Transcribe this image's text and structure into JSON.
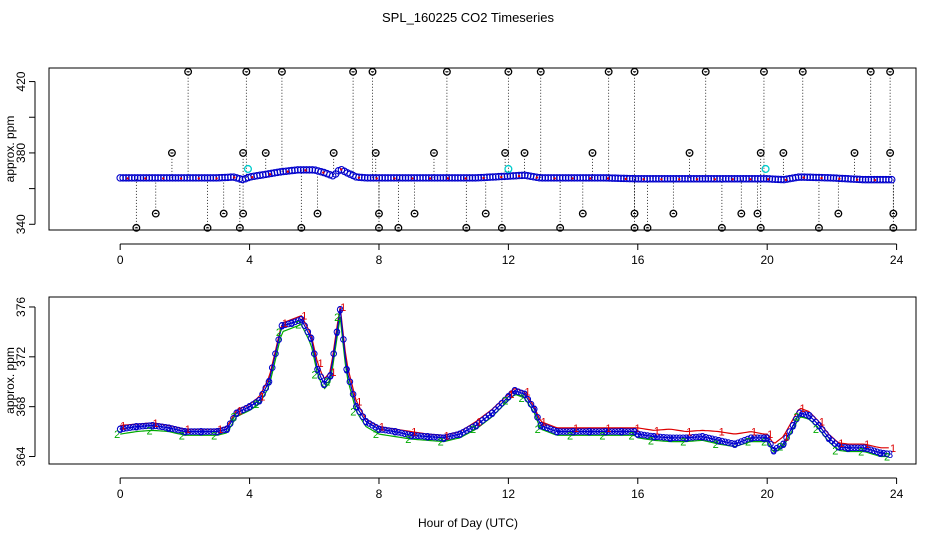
{
  "title": "SPL_160225  CO2 Timeseries",
  "xlabel": "Hour of Day (UTC)",
  "colors": {
    "circle": "#0000cc",
    "flag_black": "#000000",
    "flag_cyan": "#00cccc",
    "series1": "#dd0000",
    "series2": "#00aa00",
    "series3": "#0000cc"
  },
  "chart_data": [
    {
      "type": "scatter",
      "name": "top-panel",
      "ylabel": "approx. ppm",
      "xlim": [
        -2.2,
        24.6
      ],
      "ylim": [
        336.8,
        427.6
      ],
      "x_ticks": [
        "0",
        "4",
        "8",
        "12",
        "16",
        "20",
        "24"
      ],
      "y_ticks": [
        "340",
        "360",
        "380",
        "400",
        "420"
      ],
      "y_tick_labeled": [
        true,
        false,
        true,
        false,
        true
      ],
      "baseline_series": {
        "x": [
          0,
          1,
          2,
          3,
          3.5,
          3.8,
          4,
          4.5,
          5,
          5.5,
          6,
          6.3,
          6.6,
          6.8,
          7,
          7.3,
          7.6,
          8,
          9,
          10,
          11,
          12,
          12.5,
          13,
          14,
          15,
          16,
          17,
          18,
          19,
          20,
          20.5,
          21,
          22,
          23,
          23.8
        ],
        "y": [
          366,
          366,
          366,
          366,
          366.5,
          365,
          366.5,
          368,
          369.5,
          370.5,
          370.5,
          369,
          367,
          371,
          369,
          366.5,
          366,
          366,
          366,
          366,
          366,
          367,
          367.5,
          366,
          366,
          366,
          365.5,
          365.5,
          365.5,
          365.5,
          365.5,
          365,
          366.5,
          366,
          365,
          365
        ]
      },
      "flags_high": [
        2.1,
        3.9,
        5.0,
        7.2,
        7.8,
        10.1,
        12.0,
        13.0,
        15.1,
        15.9,
        18.1,
        19.9,
        21.1,
        23.2,
        23.8
      ],
      "flags_mid_high": [
        1.6,
        3.8,
        4.5,
        6.6,
        7.9,
        9.7,
        11.9,
        12.5,
        14.6,
        17.6,
        19.8,
        20.5,
        22.7,
        23.8
      ],
      "flags_mid_low": [
        1.1,
        3.2,
        3.8,
        6.1,
        8.0,
        9.1,
        11.3,
        14.3,
        15.9,
        17.1,
        19.2,
        19.7,
        22.2,
        23.9
      ],
      "flags_low": [
        0.5,
        2.7,
        3.7,
        5.6,
        8.0,
        8.6,
        10.7,
        11.8,
        13.6,
        15.9,
        16.3,
        18.6,
        19.8,
        21.6,
        23.9
      ],
      "cyan_points": [
        {
          "x": 3.95,
          "y": 371
        },
        {
          "x": 12.0,
          "y": 371
        },
        {
          "x": 19.95,
          "y": 371
        }
      ]
    },
    {
      "type": "line",
      "name": "bottom-panel",
      "ylabel": "approx. ppm",
      "xlim": [
        -2.2,
        24.6
      ],
      "ylim": [
        363.4,
        376.8
      ],
      "x_ticks": [
        "0",
        "4",
        "8",
        "12",
        "16",
        "20",
        "24"
      ],
      "y_ticks": [
        "364",
        "368",
        "372",
        "376"
      ],
      "series": [
        {
          "name": "3",
          "marker": "3",
          "x": [
            0,
            0.5,
            1,
            1.5,
            2,
            2.5,
            3,
            3.3,
            3.6,
            4,
            4.3,
            4.6,
            5,
            5.3,
            5.6,
            5.9,
            6.1,
            6.3,
            6.5,
            6.7,
            6.8,
            7,
            7.3,
            7.6,
            8,
            8.5,
            9,
            9.5,
            10,
            10.5,
            11,
            11.5,
            12,
            12.2,
            12.5,
            12.8,
            13,
            13.5,
            14,
            14.5,
            15,
            15.5,
            15.9,
            16,
            16.5,
            17,
            17.5,
            18,
            18.5,
            19,
            19.5,
            19.9,
            20,
            20.2,
            20.5,
            20.8,
            21,
            21.3,
            21.6,
            21.9,
            22.2,
            22.5,
            23,
            23.5,
            23.8
          ],
          "y": [
            366.2,
            366.4,
            366.5,
            366.3,
            366.0,
            366.0,
            366.0,
            366.2,
            367.5,
            368.0,
            368.5,
            370.0,
            374.5,
            374.7,
            375.0,
            373.5,
            371.0,
            369.8,
            370.5,
            374.0,
            375.8,
            371.0,
            368.0,
            366.8,
            366.2,
            366.0,
            365.7,
            365.6,
            365.5,
            365.8,
            366.5,
            367.5,
            368.8,
            369.3,
            369.0,
            367.8,
            366.5,
            366.0,
            366.0,
            366.0,
            366.0,
            366.0,
            366.0,
            365.8,
            365.6,
            365.5,
            365.5,
            365.6,
            365.3,
            365.0,
            365.5,
            365.5,
            365.5,
            364.5,
            365.0,
            366.5,
            367.5,
            367.3,
            366.5,
            365.5,
            364.8,
            364.7,
            364.7,
            364.3,
            364.2
          ]
        },
        {
          "name": "1",
          "marker": "1",
          "x": [
            0,
            0.5,
            1,
            1.5,
            2,
            2.5,
            3,
            3.3,
            3.6,
            4,
            4.3,
            4.6,
            5,
            5.3,
            5.6,
            5.9,
            6.1,
            6.3,
            6.5,
            6.7,
            6.8,
            7,
            7.3,
            7.6,
            8,
            8.5,
            9,
            9.5,
            10,
            10.5,
            11,
            11.5,
            12,
            12.2,
            12.5,
            12.8,
            13,
            13.5,
            14,
            14.5,
            15,
            15.5,
            15.9,
            16,
            16.5,
            17,
            17.5,
            18,
            18.5,
            19,
            19.5,
            19.9,
            20,
            20.2,
            20.5,
            20.8,
            21,
            21.3,
            21.6,
            21.9,
            22.2,
            22.5,
            23,
            23.5,
            23.8
          ],
          "y": [
            366.5,
            366.6,
            366.7,
            366.5,
            366.2,
            366.2,
            366.2,
            366.4,
            367.7,
            368.2,
            368.8,
            370.3,
            374.7,
            375.0,
            375.3,
            373.8,
            371.5,
            370.2,
            370.8,
            374.4,
            376.0,
            371.5,
            368.4,
            367.0,
            366.4,
            366.2,
            366.0,
            365.8,
            365.7,
            366.0,
            366.8,
            367.8,
            369.0,
            369.5,
            369.2,
            368.0,
            366.8,
            366.3,
            366.3,
            366.3,
            366.3,
            366.3,
            366.3,
            366.3,
            366.1,
            366.2,
            366.0,
            366.1,
            366.0,
            365.8,
            366.0,
            365.8,
            365.8,
            365.0,
            365.6,
            367.0,
            367.9,
            367.6,
            366.8,
            365.8,
            365.1,
            365.0,
            365.0,
            364.7,
            364.7
          ]
        },
        {
          "name": "2",
          "marker": "2",
          "x": [
            0,
            0.5,
            1,
            1.5,
            2,
            2.5,
            3,
            3.3,
            3.6,
            4,
            4.3,
            4.6,
            5,
            5.3,
            5.6,
            5.9,
            6.1,
            6.3,
            6.5,
            6.7,
            6.8,
            7,
            7.3,
            7.6,
            8,
            8.5,
            9,
            9.5,
            10,
            10.5,
            11,
            11.5,
            12,
            12.2,
            12.5,
            12.8,
            13,
            13.5,
            14,
            14.5,
            15,
            15.5,
            15.9,
            16,
            16.5,
            17,
            17.5,
            18,
            18.5,
            19,
            19.5,
            19.9,
            20,
            20.2,
            20.5,
            20.8,
            21,
            21.3,
            21.6,
            21.9,
            22.2,
            22.5,
            23,
            23.5,
            23.8
          ],
          "y": [
            365.8,
            366.0,
            366.1,
            366.0,
            365.7,
            365.7,
            365.7,
            365.9,
            367.2,
            367.7,
            368.2,
            369.6,
            374.0,
            374.3,
            374.6,
            373.0,
            370.6,
            369.4,
            370.0,
            373.5,
            375.2,
            370.5,
            367.6,
            366.4,
            365.8,
            365.6,
            365.4,
            365.3,
            365.2,
            365.5,
            366.2,
            367.2,
            368.5,
            369.0,
            368.7,
            367.5,
            366.2,
            365.7,
            365.7,
            365.7,
            365.7,
            365.7,
            365.7,
            365.5,
            365.3,
            365.2,
            365.2,
            365.3,
            365.0,
            364.8,
            365.2,
            365.2,
            365.2,
            364.3,
            364.8,
            366.2,
            367.2,
            367.0,
            366.2,
            365.2,
            364.5,
            364.4,
            364.4,
            364.0,
            364.0
          ]
        }
      ]
    }
  ]
}
